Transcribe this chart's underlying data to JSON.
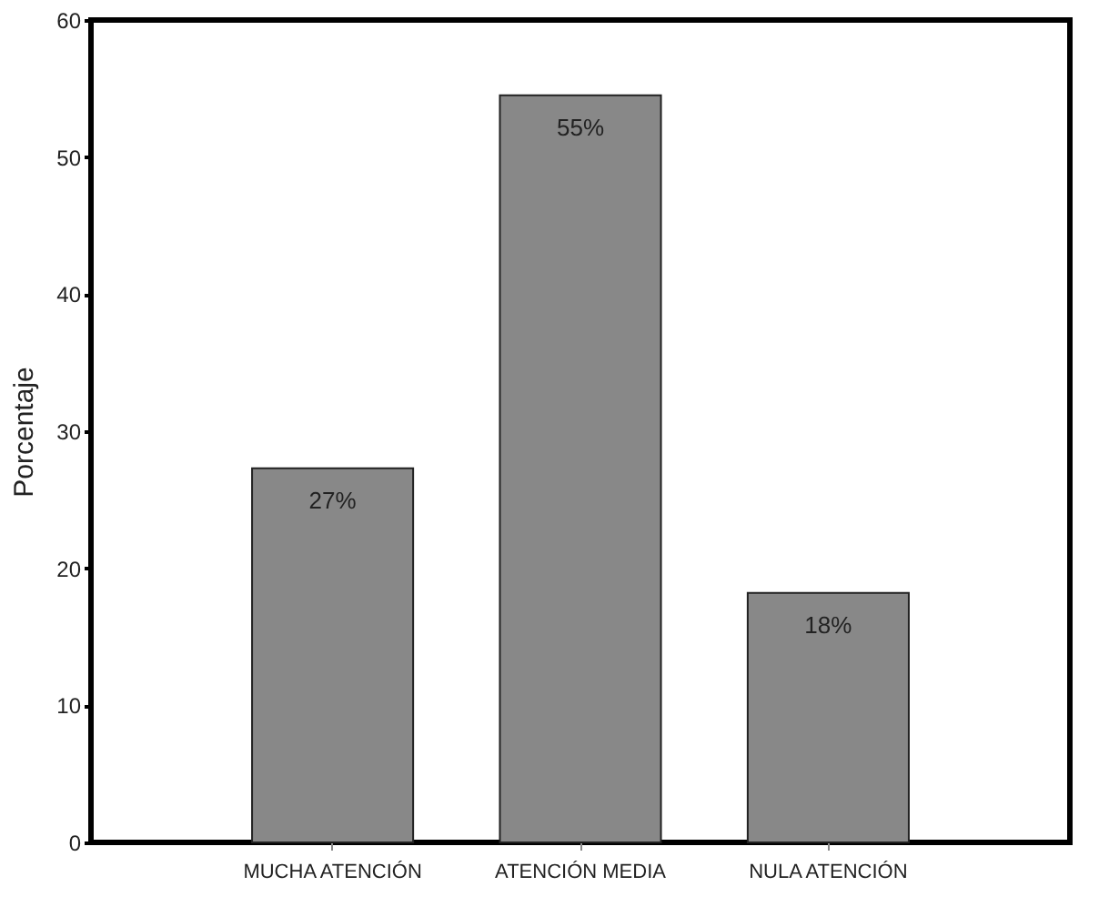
{
  "chart_data": {
    "type": "bar",
    "ylabel": "Porcentaje",
    "categories": [
      "MUCHA ATENCIÓN",
      "ATENCIÓN MEDIA",
      "NULA ATENCIÓN"
    ],
    "values": [
      27.3,
      54.5,
      18.2
    ],
    "color": "#888888",
    "value_labels": [
      "27%",
      "55%",
      "18%"
    ],
    "ylim": [
      0,
      60
    ],
    "yticks": [
      0,
      10,
      20,
      30,
      40,
      50,
      60
    ],
    "grid": false
  }
}
